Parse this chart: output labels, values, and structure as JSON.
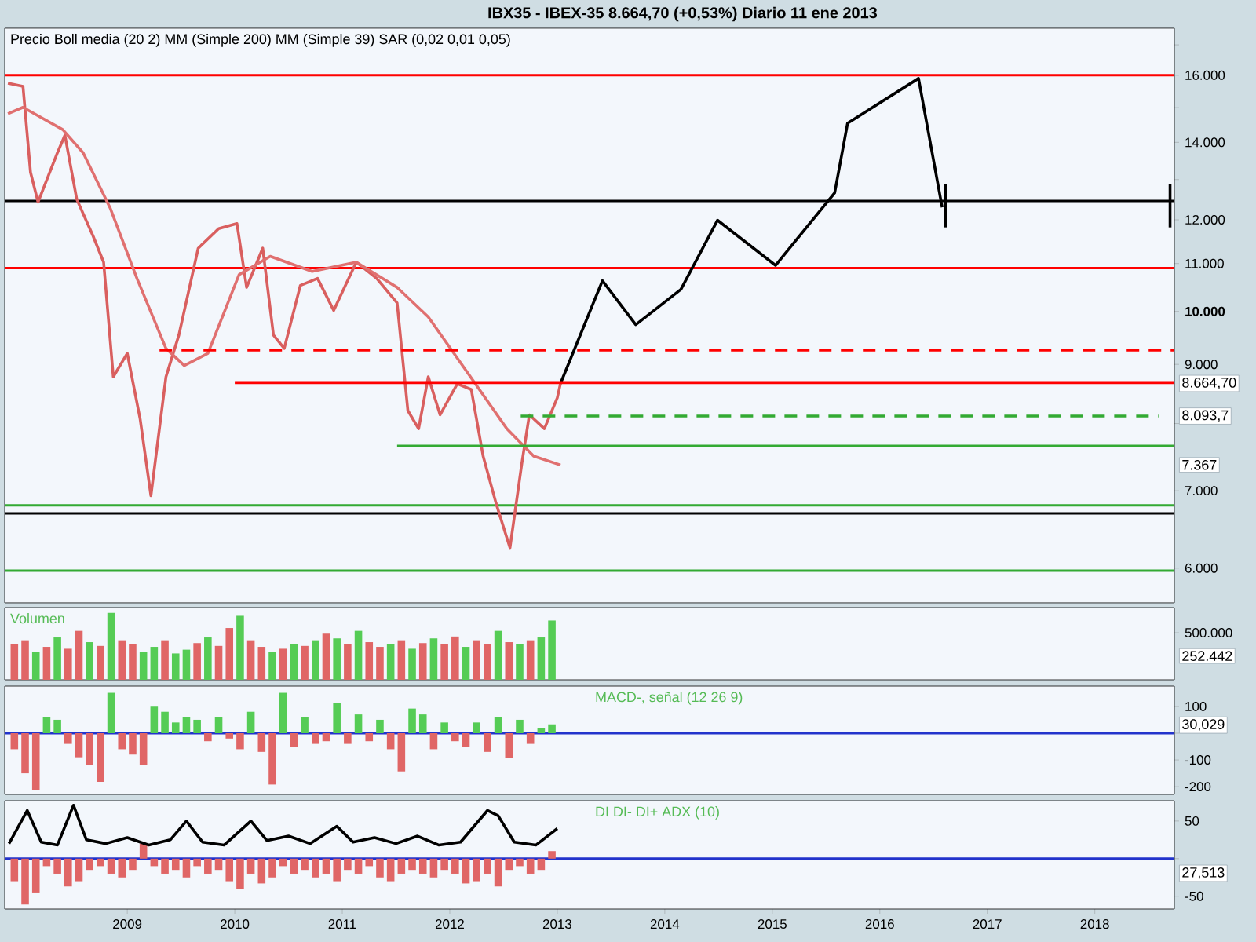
{
  "chart_data": [
    {
      "type": "line",
      "title": "IBX35 - IBEX-35 8.664,70 (+0,53%) Diario 11 ene 2013",
      "subtitle": "Precio Boll media (20 2) MM (Simple 200) MM (Simple 39) SAR (0,02 0,01 0,05)",
      "log": "y",
      "tick_labels": "y",
      "xlim": [
        2007.86,
        2018.74
      ],
      "ylim": [
        5600,
        17570
      ],
      "yticks": [
        {
          "value": 6000,
          "label": "6.000"
        },
        {
          "value": 7000,
          "label": "7.000"
        },
        {
          "value": 8000,
          "label": null
        },
        {
          "value": 9000,
          "label": "9.000"
        },
        {
          "value": 10000,
          "label": "**10.000**"
        },
        {
          "value": 11000,
          "label": "11.000"
        },
        {
          "value": 12000,
          "label": "12.000"
        },
        {
          "value": 13000,
          "label": null
        },
        {
          "value": 14000,
          "label": "14.000"
        },
        {
          "value": 15000,
          "label": null
        },
        {
          "value": 16000,
          "label": "16.000"
        },
        {
          "value": 17000,
          "label": null
        }
      ],
      "series": [
        {
          "color": "#d95f5f",
          "x": [
            2007.89,
            2008.03,
            2008.1,
            2008.17,
            2008.35,
            2008.42,
            2008.53,
            2008.68,
            2008.78,
            2008.87,
            2009.0,
            2009.12,
            2009.22,
            2009.36,
            2009.48,
            2009.66,
            2009.85,
            2010.02,
            2010.11,
            2010.26,
            2010.36,
            2010.46,
            2010.61,
            2010.77,
            2010.92,
            2011.13,
            2011.32,
            2011.51,
            2011.61,
            2011.71,
            2011.8,
            2011.91,
            2012.07,
            2012.2,
            2012.31,
            2012.43,
            2012.52,
            2012.56,
            2012.67,
            2012.74,
            2012.88,
            2013.0,
            2013.03
          ],
          "values": [
            15750,
            15650,
            13190,
            12430,
            13710,
            14200,
            12500,
            11630,
            11030,
            8780,
            9200,
            8070,
            6930,
            8780,
            9540,
            11340,
            11790,
            11910,
            10490,
            11340,
            9540,
            9290,
            10530,
            10680,
            10020,
            11030,
            10680,
            10170,
            8210,
            7920,
            8780,
            8140,
            8660,
            8560,
            7500,
            6830,
            6420,
            6250,
            7390,
            8140,
            7920,
            8420,
            8665
          ]
        },
        {
          "color": "#e07070",
          "x": [
            2007.89,
            2008.03,
            2008.4,
            2008.59,
            2008.84,
            2009.09,
            2009.36,
            2009.53,
            2009.75,
            2010.04,
            2010.33,
            2010.72,
            2011.13,
            2011.51,
            2011.8,
            2012.2,
            2012.53,
            2012.78,
            2013.03
          ],
          "values": [
            14820,
            15010,
            14360,
            13710,
            12290,
            10680,
            9290,
            8980,
            9200,
            10760,
            11160,
            10830,
            11030,
            10490,
            9890,
            8760,
            7920,
            7500,
            7367
          ]
        },
        {
          "color": "#000000",
          "x": [
            2013.03,
            2013.42,
            2013.73,
            2014.15,
            2014.49,
            2015.03,
            2015.58,
            2015.7,
            2016.36,
            2016.58
          ],
          "values": [
            8665,
            10630,
            9740,
            10450,
            11990,
            10960,
            12660,
            14540,
            15900,
            12300
          ]
        },
        {
          "color": "#000000",
          "x": [
            2016.61,
            2016.61
          ],
          "values": [
            12890,
            11820
          ]
        },
        {
          "color": "#000000",
          "x": [
            2018.7,
            2018.7
          ],
          "values": [
            12890,
            11820
          ]
        },
        {
          "color": "#ff0000",
          "line_style": "dashed",
          "x": [
            2009.3,
            2018.74
          ],
          "values": [
            9260,
            9260
          ]
        },
        {
          "color": "#ff0000",
          "x": [
            2010.0,
            2018.74
          ],
          "values": [
            8680,
            8680
          ]
        },
        {
          "color": "#33aa33",
          "line_style": "dashed",
          "x": [
            2012.66,
            2018.6
          ],
          "values": [
            8120,
            8120
          ]
        },
        {
          "color": "#33aa33",
          "x": [
            2011.51,
            2018.74
          ],
          "values": [
            7650,
            7650
          ]
        }
      ],
      "ref_lines": [
        {
          "axis": "y",
          "value": 16000,
          "color": "#ff0000"
        },
        {
          "axis": "y",
          "value": 12460,
          "color": "#000000"
        },
        {
          "axis": "y",
          "value": 10900,
          "color": "#ff0000"
        },
        {
          "axis": "y",
          "value": 6800,
          "color": "#33aa33"
        },
        {
          "axis": "y",
          "value": 6690,
          "color": "#000000"
        },
        {
          "axis": "y",
          "value": 5970,
          "color": "#33aa33"
        }
      ],
      "annotations": [
        {
          "text": "8.664,70",
          "x": 2018.74,
          "y": 8664.7
        },
        "8.093,7",
        "7.367"
      ]
    },
    {
      "type": "bar",
      "title": "Volumen",
      "tick_labels": "y",
      "xlim": [
        2007.86,
        2018.74
      ],
      "ylim": [
        0,
        767000
      ],
      "yticks": [
        {
          "value": 500000,
          "label": "500.000"
        }
      ],
      "x": [
        2007.95,
        2008.05,
        2008.15,
        2008.25,
        2008.35,
        2008.45,
        2008.55,
        2008.65,
        2008.75,
        2008.85,
        2008.95,
        2009.05,
        2009.15,
        2009.25,
        2009.35,
        2009.45,
        2009.55,
        2009.65,
        2009.75,
        2009.85,
        2009.95,
        2010.05,
        2010.15,
        2010.25,
        2010.35,
        2010.45,
        2010.55,
        2010.65,
        2010.75,
        2010.85,
        2010.95,
        2011.05,
        2011.15,
        2011.25,
        2011.35,
        2011.45,
        2011.55,
        2011.65,
        2011.75,
        2011.85,
        2011.95,
        2012.05,
        2012.15,
        2012.25,
        2012.35,
        2012.45,
        2012.55,
        2012.65,
        2012.75,
        2012.85,
        2012.95
      ],
      "series": [
        {
          "values": [
            380000,
            420000,
            300000,
            350000,
            450000,
            330000,
            520000,
            400000,
            360000,
            710000,
            420000,
            380000,
            300000,
            350000,
            420000,
            280000,
            320000,
            390000,
            450000,
            360000,
            550000,
            680000,
            420000,
            350000,
            300000,
            330000,
            380000,
            360000,
            420000,
            490000,
            440000,
            380000,
            520000,
            400000,
            350000,
            380000,
            420000,
            330000,
            390000,
            440000,
            380000,
            460000,
            350000,
            420000,
            380000,
            520000,
            400000,
            380000,
            420000,
            450000,
            630000
          ],
          "colors": [
            "#e06666",
            "#e06666",
            "#55cc55",
            "#e06666",
            "#55cc55",
            "#e06666",
            "#e06666",
            "#55cc55",
            "#e06666",
            "#55cc55",
            "#e06666",
            "#e06666",
            "#55cc55",
            "#55cc55",
            "#e06666",
            "#55cc55",
            "#55cc55",
            "#e06666",
            "#55cc55",
            "#e06666",
            "#e06666",
            "#55cc55",
            "#e06666",
            "#e06666",
            "#55cc55",
            "#e06666",
            "#55cc55",
            "#e06666",
            "#55cc55",
            "#e06666",
            "#55cc55",
            "#e06666",
            "#55cc55",
            "#e06666",
            "#e06666",
            "#55cc55",
            "#e06666",
            "#55cc55",
            "#e06666",
            "#55cc55",
            "#e06666",
            "#e06666",
            "#55cc55",
            "#e06666",
            "#e06666",
            "#55cc55",
            "#e06666",
            "#55cc55",
            "#e06666",
            "#55cc55",
            "#55cc55"
          ]
        }
      ],
      "annotations": [
        "252.442"
      ]
    },
    {
      "type": "bar",
      "title": "MACD-, señal (12 26 9)",
      "tick_labels": "y",
      "xlim": [
        2007.86,
        2018.74
      ],
      "ylim": [
        -229,
        176
      ],
      "yticks": [
        100,
        {
          "value": 0,
          "label": null
        },
        -100,
        -200
      ],
      "x": [
        2007.95,
        2008.05,
        2008.15,
        2008.25,
        2008.35,
        2008.45,
        2008.55,
        2008.65,
        2008.75,
        2008.85,
        2008.95,
        2009.05,
        2009.15,
        2009.25,
        2009.35,
        2009.45,
        2009.55,
        2009.65,
        2009.75,
        2009.85,
        2009.95,
        2010.05,
        2010.15,
        2010.25,
        2010.35,
        2010.45,
        2010.55,
        2010.65,
        2010.75,
        2010.85,
        2010.95,
        2011.05,
        2011.15,
        2011.25,
        2011.35,
        2011.45,
        2011.55,
        2011.65,
        2011.75,
        2011.85,
        2011.95,
        2012.05,
        2012.15,
        2012.25,
        2012.35,
        2012.45,
        2012.55,
        2012.65,
        2012.75,
        2012.85,
        2012.95
      ],
      "series": [
        {
          "values": [
            -60,
            -150,
            -212,
            60,
            50,
            -40,
            -90,
            -120,
            -182,
            151,
            -60,
            -80,
            -120,
            102,
            80,
            40,
            60,
            50,
            -30,
            60,
            -20,
            -60,
            80,
            -70,
            -192,
            151,
            -50,
            60,
            -40,
            -30,
            112,
            -40,
            70,
            -30,
            50,
            -60,
            -143,
            92,
            70,
            -60,
            40,
            -30,
            -50,
            40,
            -70,
            60,
            -94,
            50,
            -40,
            20,
            33
          ],
          "colors": [
            "#e06666",
            "#e06666",
            "#e06666",
            "#55cc55",
            "#55cc55",
            "#e06666",
            "#e06666",
            "#e06666",
            "#e06666",
            "#55cc55",
            "#e06666",
            "#e06666",
            "#e06666",
            "#55cc55",
            "#55cc55",
            "#55cc55",
            "#55cc55",
            "#55cc55",
            "#e06666",
            "#55cc55",
            "#e06666",
            "#e06666",
            "#55cc55",
            "#e06666",
            "#e06666",
            "#55cc55",
            "#e06666",
            "#55cc55",
            "#e06666",
            "#e06666",
            "#55cc55",
            "#e06666",
            "#55cc55",
            "#e06666",
            "#55cc55",
            "#e06666",
            "#e06666",
            "#55cc55",
            "#55cc55",
            "#e06666",
            "#55cc55",
            "#e06666",
            "#e06666",
            "#55cc55",
            "#e06666",
            "#55cc55",
            "#e06666",
            "#55cc55",
            "#e06666",
            "#55cc55",
            "#55cc55"
          ]
        }
      ],
      "ref_lines": [
        {
          "axis": "y",
          "value": 0,
          "color": "#2233cc"
        }
      ],
      "annotations": [
        "30,029"
      ]
    },
    {
      "type": "bar",
      "title": "DI DI- DI+ ADX (10)",
      "xlim": [
        2007.86,
        2018.74
      ],
      "ylim": [
        -67,
        77
      ],
      "xticks": [
        2009,
        2010,
        2011,
        2012,
        2013,
        2014,
        2015,
        2016,
        2017,
        2018
      ],
      "yticks": [
        50,
        {
          "value": 0,
          "label": null
        },
        -50
      ],
      "x": [
        2007.95,
        2008.05,
        2008.15,
        2008.25,
        2008.35,
        2008.45,
        2008.55,
        2008.65,
        2008.75,
        2008.85,
        2008.95,
        2009.05,
        2009.15,
        2009.25,
        2009.35,
        2009.45,
        2009.55,
        2009.65,
        2009.75,
        2009.85,
        2009.95,
        2010.05,
        2010.15,
        2010.25,
        2010.35,
        2010.45,
        2010.55,
        2010.65,
        2010.75,
        2010.85,
        2010.95,
        2011.05,
        2011.15,
        2011.25,
        2011.35,
        2011.45,
        2011.55,
        2011.65,
        2011.75,
        2011.85,
        2011.95,
        2012.05,
        2012.15,
        2012.25,
        2012.35,
        2012.45,
        2012.55,
        2012.65,
        2012.75,
        2012.85,
        2012.95
      ],
      "series": [
        {
          "color": "#e06666",
          "values": [
            -30,
            -61,
            -45,
            -10,
            -20,
            -37,
            -30,
            -15,
            -10,
            -20,
            -25,
            -15,
            20,
            -10,
            -20,
            -15,
            -25,
            -10,
            -20,
            -15,
            -30,
            -40,
            -20,
            -33,
            -25,
            -10,
            -20,
            -15,
            -25,
            -20,
            -30,
            -15,
            -20,
            -10,
            -25,
            -30,
            -20,
            -15,
            -20,
            -25,
            -15,
            -20,
            -33,
            -30,
            -20,
            -37,
            -15,
            -10,
            -20,
            -15,
            10
          ]
        },
        {
          "type": "line",
          "color": "#000000",
          "x": [
            2007.9,
            2008.07,
            2008.2,
            2008.35,
            2008.5,
            2008.62,
            2008.8,
            2009.0,
            2009.2,
            2009.4,
            2009.55,
            2009.7,
            2009.9,
            2010.15,
            2010.3,
            2010.5,
            2010.7,
            2010.95,
            2011.1,
            2011.3,
            2011.5,
            2011.7,
            2011.9,
            2012.1,
            2012.35,
            2012.45,
            2012.6,
            2012.8,
            2013.0
          ],
          "values": [
            20,
            64,
            22,
            18,
            71,
            25,
            20,
            28,
            18,
            25,
            50,
            22,
            18,
            50,
            24,
            30,
            20,
            43,
            22,
            28,
            20,
            30,
            18,
            22,
            64,
            57,
            22,
            18,
            40
          ]
        }
      ],
      "ref_lines": [
        {
          "axis": "y",
          "value": 0,
          "color": "#2233cc"
        }
      ],
      "annotations": [
        "27,513"
      ]
    }
  ]
}
